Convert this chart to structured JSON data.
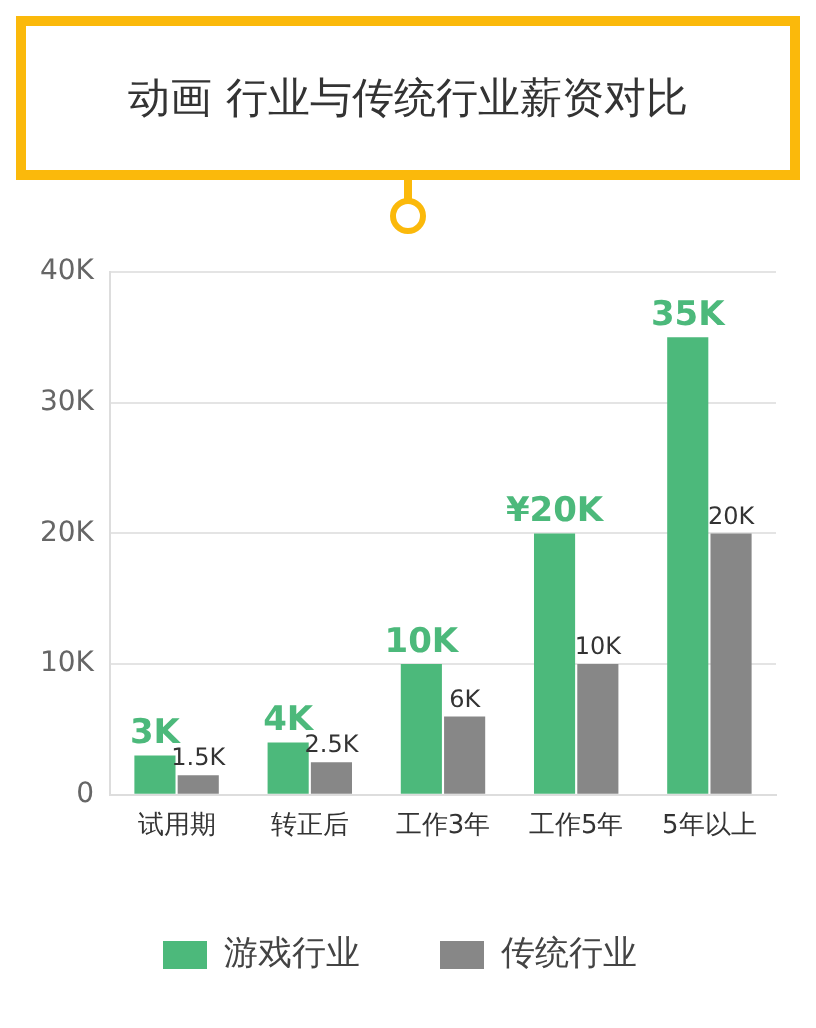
{
  "chart_data": {
    "type": "bar",
    "title": "动画 行业与传统行业薪资对比",
    "categories": [
      "试用期",
      "转正后",
      "工作3年",
      "工作5年",
      "5年以上"
    ],
    "series": [
      {
        "name": "游戏行业",
        "color": "#4cb97b",
        "values": [
          3000,
          4000,
          10000,
          20000,
          35000
        ],
        "value_labels": [
          "3K",
          "4K",
          "10K",
          "¥20K",
          "35K"
        ]
      },
      {
        "name": "传统行业",
        "color": "#878787",
        "values": [
          1500,
          2500,
          6000,
          10000,
          20000
        ],
        "value_labels": [
          "1.5K",
          "2.5K",
          "6K",
          "10K",
          "20K"
        ]
      }
    ],
    "ylim": [
      0,
      40000
    ],
    "yticks": [
      0,
      {
        "value": 10000,
        "label": "10K"
      },
      {
        "value": 20000,
        "label": "20K"
      },
      {
        "value": 30000,
        "label": "30K"
      },
      {
        "value": 40000,
        "label": "40K"
      }
    ],
    "grid": "y",
    "legend": "bottom"
  }
}
